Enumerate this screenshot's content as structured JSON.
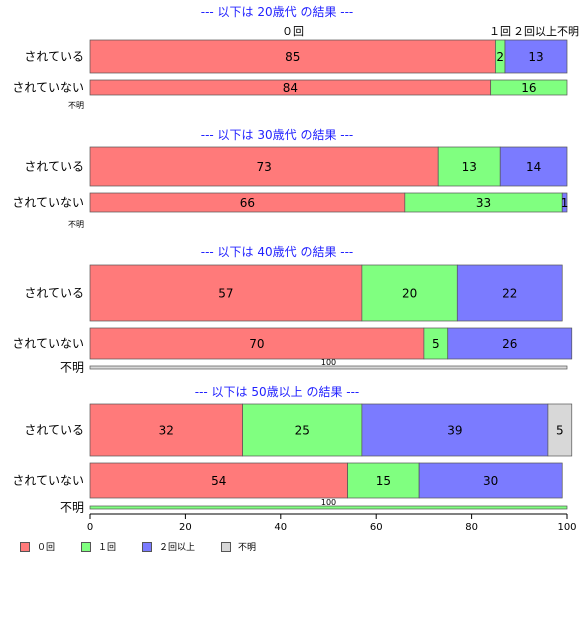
{
  "colors": {
    "none": "#ff7a7a",
    "once": "#80ff80",
    "twice": "#7b7bff",
    "unknown": "#d8d8d8",
    "title": "#2222ff",
    "border": "#555555"
  },
  "legend": [
    {
      "label": "０回",
      "color": "#ff7a7a"
    },
    {
      "label": "１回",
      "color": "#80ff80"
    },
    {
      "label": "２回以上",
      "color": "#7b7bff"
    },
    {
      "label": "不明",
      "color": "#d8d8d8"
    }
  ],
  "chart_data": {
    "type": "bar",
    "orientation": "horizontal",
    "stacked": true,
    "xlim": [
      0,
      100
    ],
    "xticks": [
      0,
      20,
      40,
      60,
      80,
      100
    ],
    "series_names": [
      "０回",
      "１回",
      "２回以上",
      "不明"
    ],
    "top_annotations": [
      "０回",
      "１回",
      "２回以上",
      "不明"
    ],
    "groups": [
      {
        "title": "--- 以下は 20歳代 の結果 ---",
        "rows": [
          {
            "label": "されている",
            "values": [
              85,
              2,
              13,
              0
            ],
            "labels": [
              "85",
              "2",
              "13",
              ""
            ]
          },
          {
            "label": "されていない",
            "values": [
              84,
              16,
              0,
              0
            ],
            "labels": [
              "84",
              "16",
              "",
              ""
            ]
          },
          {
            "label": "不明",
            "values": [],
            "labels": []
          }
        ]
      },
      {
        "title": "--- 以下は 30歳代 の結果 ---",
        "rows": [
          {
            "label": "されている",
            "values": [
              73,
              13,
              14,
              0
            ],
            "labels": [
              "73",
              "13",
              "14",
              ""
            ]
          },
          {
            "label": "されていない",
            "values": [
              66,
              33,
              1,
              0
            ],
            "labels": [
              "66",
              "33",
              "1",
              ""
            ]
          },
          {
            "label": "不明",
            "values": [],
            "labels": []
          }
        ]
      },
      {
        "title": "--- 以下は 40歳代 の結果 ---",
        "rows": [
          {
            "label": "されている",
            "values": [
              57,
              20,
              22,
              0
            ],
            "labels": [
              "57",
              "20",
              "22",
              ""
            ]
          },
          {
            "label": "されていない",
            "values": [
              70,
              5,
              26,
              0
            ],
            "labels": [
              "70",
              "5",
              "26",
              ""
            ]
          },
          {
            "label": "不明",
            "values": [
              0,
              0,
              0,
              100
            ],
            "labels": [
              "",
              "",
              "",
              "100"
            ]
          }
        ]
      },
      {
        "title": "--- 以下は 50歳以上 の結果 ---",
        "rows": [
          {
            "label": "されている",
            "values": [
              32,
              25,
              39,
              5
            ],
            "labels": [
              "32",
              "25",
              "39",
              "5"
            ]
          },
          {
            "label": "されていない",
            "values": [
              54,
              15,
              30,
              0
            ],
            "labels": [
              "54",
              "15",
              "30",
              ""
            ]
          },
          {
            "label": "不明",
            "values": [
              0,
              100,
              0,
              0
            ],
            "labels": [
              "",
              "100",
              "",
              ""
            ]
          }
        ]
      }
    ]
  }
}
